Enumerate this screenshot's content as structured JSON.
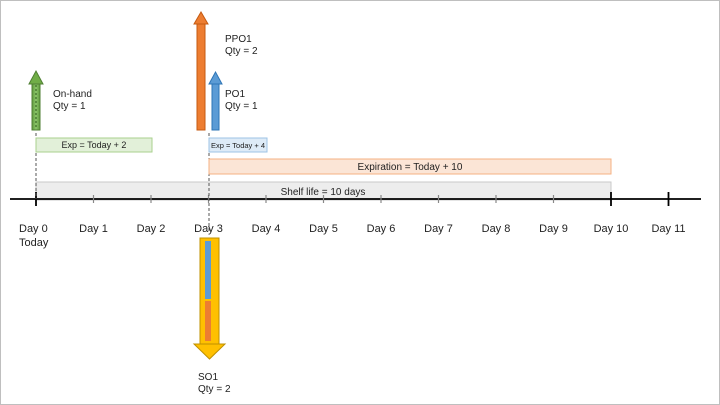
{
  "timeline": {
    "days": [
      "Day 0",
      "Day 1",
      "Day 2",
      "Day 3",
      "Day 4",
      "Day 5",
      "Day 6",
      "Day 7",
      "Day 8",
      "Day 9",
      "Day 10",
      "Day 11"
    ],
    "today_label": "Today"
  },
  "supply": {
    "onhand": {
      "name": "On-hand",
      "qty": "Qty = 1",
      "color": "#70ad47"
    },
    "ppo1": {
      "name": "PPO1",
      "qty": "Qty = 2",
      "color": "#ed7d31"
    },
    "po1": {
      "name": "PO1",
      "qty": "Qty = 1",
      "color": "#5b9bd5"
    }
  },
  "demand": {
    "so1": {
      "name": "SO1",
      "qty": "Qty = 2",
      "color": "#ffc000"
    }
  },
  "bars": {
    "exp_onhand": {
      "label": "Exp = Today + 2",
      "color": "#e2f0d9"
    },
    "exp_po1": {
      "label": "Exp = Today + 4",
      "color": "#deebf7"
    },
    "exp_ppo1": {
      "label": "Expiration = Today + 10",
      "color": "#fbe5d6"
    },
    "shelf_life": {
      "label": "Shelf life = 10 days",
      "color": "#ededed"
    }
  }
}
